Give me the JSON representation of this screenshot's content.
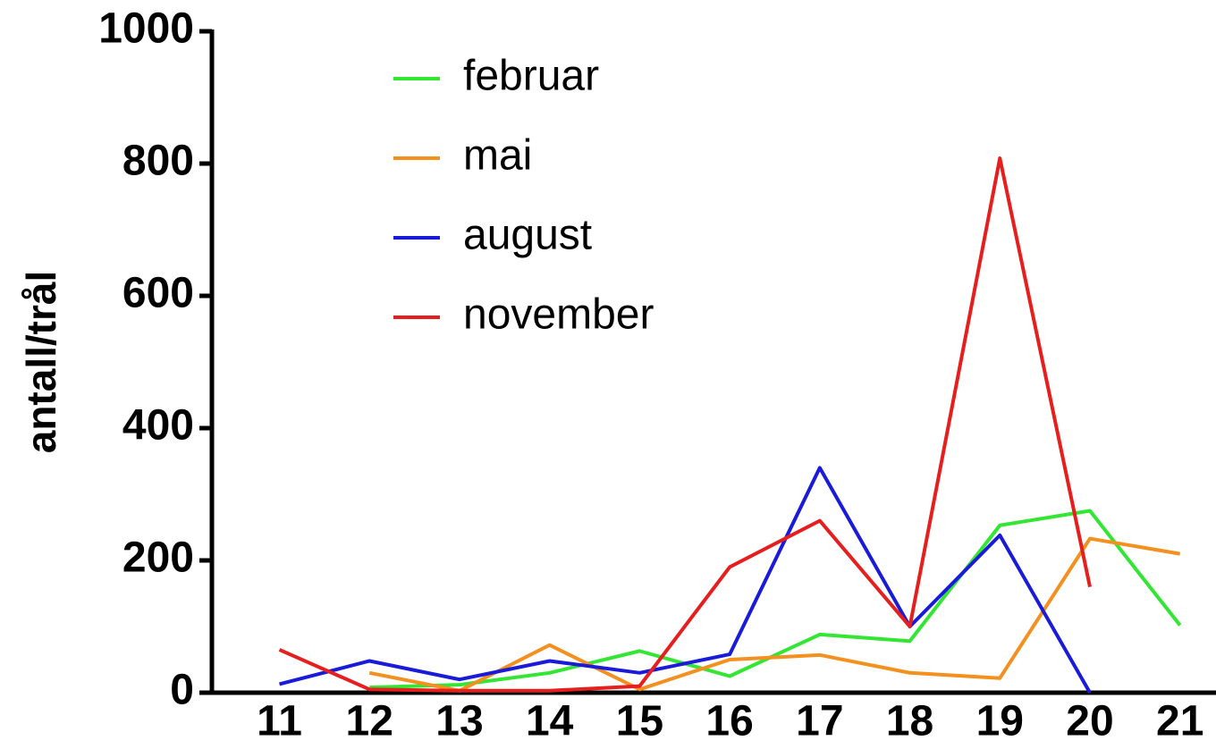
{
  "chart_data": {
    "type": "line",
    "y_label": "antall/trål",
    "x": [
      11,
      12,
      13,
      14,
      15,
      16,
      17,
      18,
      19,
      20,
      21
    ],
    "series": [
      {
        "name": "februar",
        "color": "#33e633",
        "values": [
          null,
          8,
          12,
          30,
          63,
          25,
          88,
          78,
          253,
          275,
          102
        ]
      },
      {
        "name": "mai",
        "color": "#f39020",
        "values": [
          null,
          30,
          3,
          72,
          5,
          50,
          57,
          30,
          22,
          233,
          210
        ]
      },
      {
        "name": "august",
        "color": "#1a1ad9",
        "values": [
          13,
          48,
          20,
          48,
          30,
          58,
          340,
          100,
          238,
          0,
          null
        ]
      },
      {
        "name": "november",
        "color": "#e61e1e",
        "values": [
          65,
          5,
          3,
          3,
          10,
          190,
          260,
          100,
          808,
          160,
          null
        ]
      }
    ],
    "xlim": [
      10.25,
      21.4
    ],
    "xticks": [
      11,
      12,
      13,
      14,
      15,
      16,
      17,
      18,
      19,
      20,
      21
    ],
    "ylim": [
      0,
      1000
    ],
    "yticks": [
      0,
      200,
      400,
      600,
      800,
      1000
    ],
    "legend": "top-left"
  }
}
